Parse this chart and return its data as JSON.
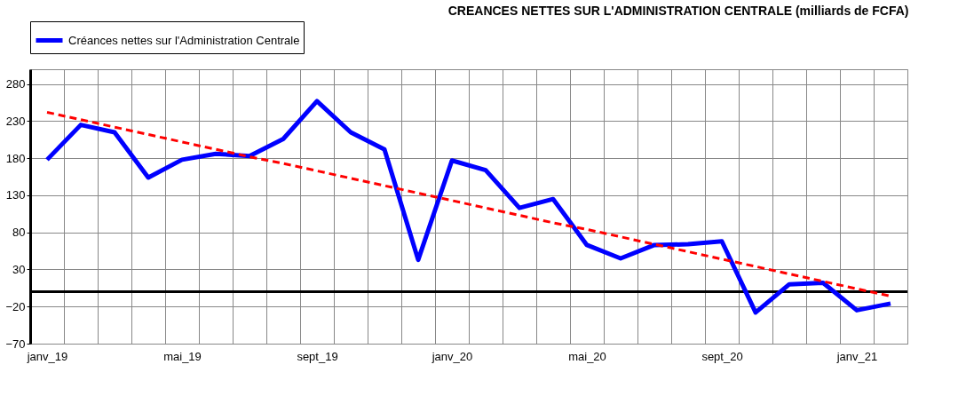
{
  "chart_data": {
    "type": "line",
    "title": "CREANCES NETTES SUR L'ADMINISTRATION CENTRALE  (milliards de FCFA)",
    "categories": [
      "janv_19",
      null,
      null,
      null,
      "mai_19",
      null,
      null,
      null,
      "sept_19",
      null,
      null,
      null,
      "janv_20",
      null,
      null,
      null,
      "mai_20",
      null,
      null,
      null,
      "sept_20",
      null,
      null,
      null,
      "janv_21",
      null
    ],
    "series": [
      {
        "name": "Créances nettes sur l'Administration Centrale",
        "color": "#0000ff",
        "line_style": "solid",
        "values": [
          178,
          225,
          215,
          154,
          178,
          186,
          183,
          206,
          257,
          215,
          192,
          43,
          177,
          164,
          113,
          125,
          63,
          45,
          63,
          64,
          68,
          -28,
          10,
          12,
          -25,
          -16
        ]
      },
      {
        "type": "line",
        "color": "#ff0000",
        "line_style": "dashed",
        "values": [
          242,
          232,
          222,
          212,
          202,
          192,
          182,
          173,
          163,
          153,
          143,
          133,
          123,
          113,
          103,
          93,
          84,
          74,
          64,
          54,
          44,
          34,
          24,
          14,
          4,
          -6
        ]
      }
    ],
    "ylim": [
      -70,
      300
    ],
    "yticks": [
      -70,
      -20,
      30,
      80,
      130,
      180,
      230,
      280
    ],
    "ref_lines": [
      {
        "axis": "y",
        "value": 0,
        "color": "#000000"
      }
    ],
    "grid": true,
    "legend": "top",
    "marker": "none"
  }
}
